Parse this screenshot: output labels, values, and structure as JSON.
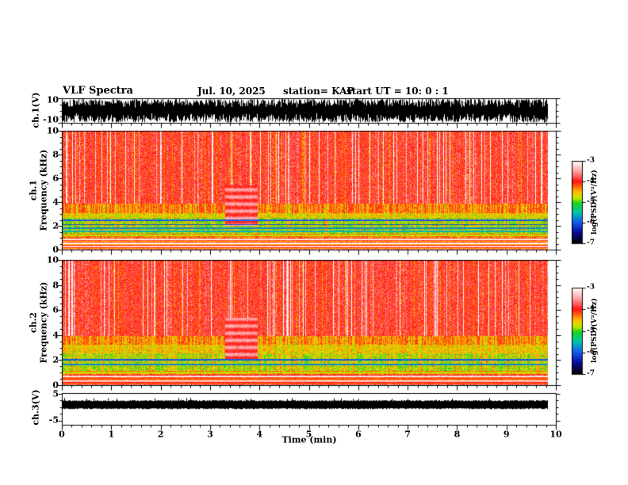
{
  "header": {
    "title": "VLF Spectra",
    "date": "Jul. 10, 2025",
    "station": "station= KAP",
    "start_ut": "start UT =  10: 0 : 1"
  },
  "x_axis": {
    "label": "Time (min)",
    "ticks": [
      "0",
      "1",
      "2",
      "3",
      "4",
      "5",
      "6",
      "7",
      "8",
      "9",
      "10"
    ],
    "range": [
      0,
      10
    ],
    "minor_step": 0.2
  },
  "panels": {
    "ch1_wave": {
      "ylabel": "ch.1(V)",
      "yticks": [
        "10",
        "-10"
      ],
      "ylim": [
        -10,
        10
      ]
    },
    "spec1": {
      "channel": "ch.1",
      "axis": "Frequency (kHz)",
      "yticks": [
        "0",
        "2",
        "4",
        "6",
        "8",
        "10"
      ],
      "ylim": [
        0,
        10
      ]
    },
    "spec2": {
      "channel": "ch.2",
      "axis": "Frequency (kHz)",
      "yticks": [
        "0",
        "2",
        "4",
        "6",
        "8",
        "10"
      ],
      "ylim": [
        0,
        10
      ]
    },
    "ch3_wave": {
      "ylabel": "ch.3(V)",
      "yticks": [
        "5",
        "-5"
      ],
      "ylim": [
        -5,
        5
      ]
    }
  },
  "colorbar": {
    "label": "log(PSD)(V²/Hz)",
    "ticks": [
      "-3",
      "-4",
      "-5",
      "-6",
      "-7"
    ],
    "zlim": [
      -7,
      -3
    ]
  },
  "chart_data": {
    "type": "heatmap",
    "title": "VLF Spectra",
    "subtitle": "Jul. 10, 2025, station KAP, start UT 10:0:1",
    "x": {
      "label": "Time (min)",
      "min": 0,
      "max": 10,
      "tick_step": 1,
      "minor_step": 0.2
    },
    "z": {
      "label": "log(PSD)(V²/Hz)",
      "min": -7,
      "max": -3
    },
    "legend_position": "right colorbars, one per spectrogram",
    "grid": false,
    "colormap_stops": [
      [
        -3.0,
        "#ffffff"
      ],
      [
        -3.55,
        "#ff9696"
      ],
      [
        -4.0,
        "#ff1414"
      ],
      [
        -4.5,
        "#ffbe00"
      ],
      [
        -4.8,
        "#c8e600"
      ],
      [
        -5.05,
        "#1ed21e"
      ],
      [
        -5.5,
        "#00c8aa"
      ],
      [
        -6.0,
        "#145af0"
      ],
      [
        -6.5,
        "#0a0a96"
      ],
      [
        -7.0,
        "#000000"
      ]
    ],
    "waveform_ch1": {
      "ylim": [
        -10,
        10
      ],
      "character": "dense black broadband noise, envelope ~3-10 V both polarities, spans 0-9.8 min",
      "seed": 101
    },
    "waveform_ch3": {
      "ylim": [
        -5,
        5
      ],
      "character": "clipped constant black band",
      "band_top_v": 2.45,
      "band_bottom_v": -0.55,
      "seed": 404
    },
    "spectrograms": [
      {
        "channel": "ch.1",
        "ylim": [
          0,
          10
        ],
        "seed": 202,
        "bands": [
          {
            "lo": 3.9,
            "hi": 10.2,
            "v": -4.0,
            "n": 0.32,
            "sp": 0
          },
          {
            "lo": 3.1,
            "hi": 3.9,
            "v": -4.15,
            "n": 0.3,
            "sp": -0.75
          },
          {
            "lo": 2.7,
            "hi": 3.1,
            "v": -4.55,
            "n": 0.3,
            "sp": -0.35
          },
          {
            "lo": 1.35,
            "hi": 2.7,
            "v": -4.95,
            "n": 0.3,
            "sp": 0.75
          },
          {
            "lo": 0.95,
            "hi": 1.35,
            "v": -4.35,
            "n": 0.28,
            "sp": 0.3
          },
          {
            "lo": 0.0,
            "hi": 0.95,
            "v": -3.9,
            "n": 0.3,
            "sp": 0
          }
        ],
        "lines": [
          {
            "f": 2.45,
            "v": -6.0
          },
          {
            "f": 2.1,
            "v": -6.1
          },
          {
            "f": 1.8,
            "v": -5.8
          },
          {
            "f": 1.55,
            "v": -5.6
          },
          {
            "f": 1.2,
            "v": -4.8
          },
          {
            "f": 0.85,
            "v": -3.15
          },
          {
            "f": 0.7,
            "v": -4.5
          },
          {
            "f": 0.55,
            "v": -3.2
          },
          {
            "f": 0.42,
            "v": -4.3
          },
          {
            "f": 0.28,
            "v": -3.2
          },
          {
            "f": 0.15,
            "v": -4.2
          }
        ],
        "patch": {
          "t0": 3.3,
          "t1": 3.95,
          "f0": 2.0,
          "f1": 5.4,
          "v": -3.75
        }
      },
      {
        "channel": "ch.2",
        "ylim": [
          0,
          10
        ],
        "seed": 303,
        "bands": [
          {
            "lo": 3.9,
            "hi": 10.2,
            "v": -4.0,
            "n": 0.32,
            "sp": 0
          },
          {
            "lo": 3.2,
            "hi": 3.9,
            "v": -4.2,
            "n": 0.3,
            "sp": -0.7
          },
          {
            "lo": 2.55,
            "hi": 3.2,
            "v": -4.5,
            "n": 0.3,
            "sp": -0.35
          },
          {
            "lo": 1.15,
            "hi": 2.55,
            "v": -4.9,
            "n": 0.3,
            "sp": 0.7
          },
          {
            "lo": 0.8,
            "hi": 1.15,
            "v": -4.3,
            "n": 0.28,
            "sp": 0.3
          },
          {
            "lo": 0.0,
            "hi": 0.8,
            "v": -3.9,
            "n": 0.3,
            "sp": 0
          }
        ],
        "lines": [
          {
            "f": 2.05,
            "v": -6.0
          },
          {
            "f": 1.65,
            "v": -5.8
          },
          {
            "f": 1.0,
            "v": -4.8
          },
          {
            "f": 0.68,
            "v": -3.2
          },
          {
            "f": 0.5,
            "v": -4.3
          },
          {
            "f": 0.34,
            "v": -3.2
          },
          {
            "f": 0.18,
            "v": -4.2
          }
        ],
        "patch": {
          "t0": 3.3,
          "t1": 3.95,
          "f0": 2.0,
          "f1": 5.4,
          "v": -3.75
        }
      }
    ]
  }
}
